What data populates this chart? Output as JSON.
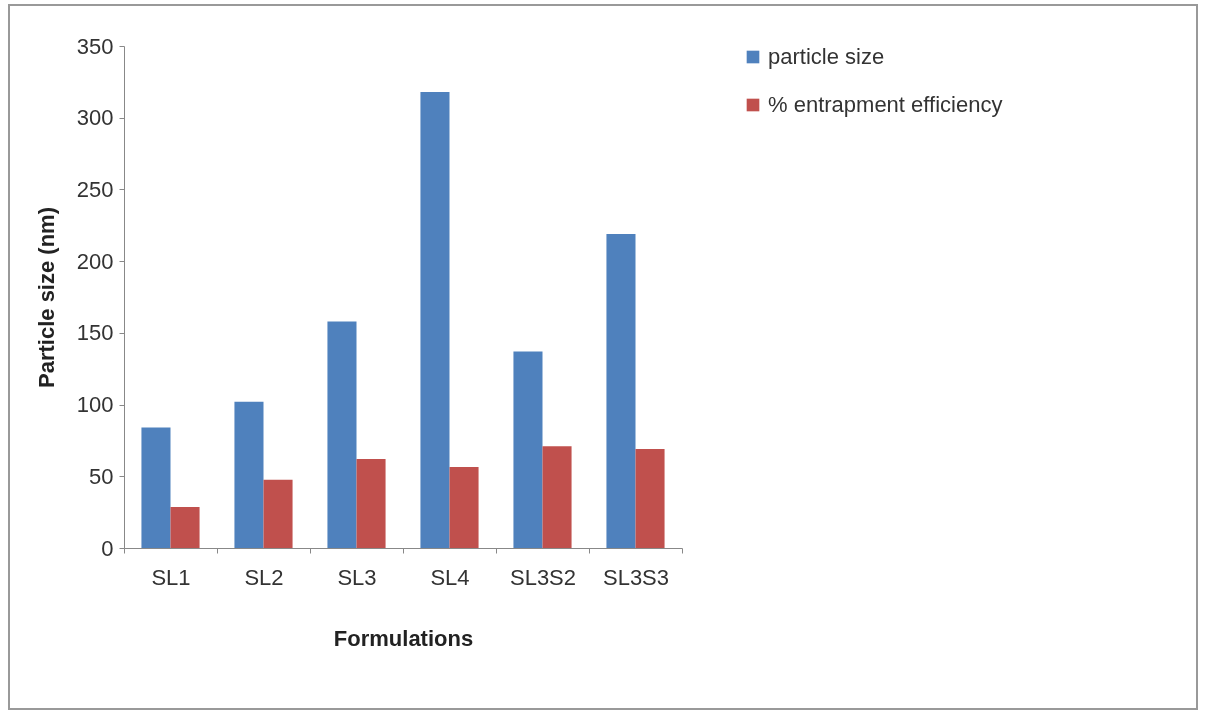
{
  "chart_data": {
    "type": "bar",
    "xlabel": "Formulations",
    "ylabel": "Particle size (nm)",
    "categories": [
      "SL1",
      "SL2",
      "SL3",
      "SL4",
      "SL3S2",
      "SL3S3"
    ],
    "series": [
      {
        "name": "particle size",
        "color": "#4f81bd",
        "values": [
          84,
          102,
          158,
          318,
          137,
          219
        ]
      },
      {
        "name": "% entrapment efficiency",
        "color": "#c0504d",
        "values": [
          28.5,
          47.5,
          62,
          56.5,
          71,
          69
        ]
      }
    ],
    "ylim": [
      0,
      350
    ],
    "yticks": [
      0,
      50,
      100,
      150,
      200,
      250,
      300,
      350
    ],
    "grid": false,
    "legend": "right"
  }
}
